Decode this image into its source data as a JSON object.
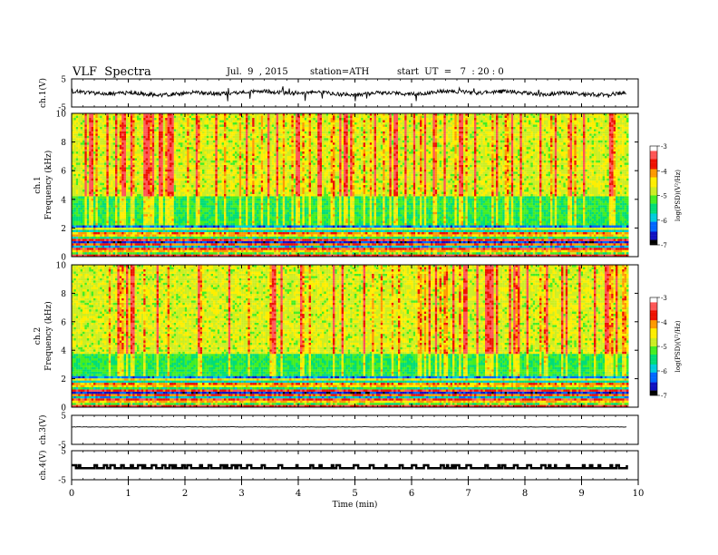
{
  "header": {
    "title": "VLF  Spectra",
    "date": "Jul.  9  , 2015",
    "station": "station=ATH",
    "start_ut": "start  UT  =   7  : 20 : 0"
  },
  "colors": {
    "scale": [
      "#000000",
      "#1010c0",
      "#0066ff",
      "#00ccdd",
      "#00dd77",
      "#44ee22",
      "#ccee22",
      "#ffee00",
      "#ff9900",
      "#ee1100",
      "#ff5555",
      "#ffffff"
    ],
    "trace": "#000000"
  },
  "chart_data": [
    {
      "type": "line",
      "ylabel": "ch.1(V)",
      "ylim": [
        -5,
        5
      ],
      "y_tick_labels": [
        "5",
        "-5"
      ],
      "note": "noisy waveform around 0 V, amplitude about 0.5 to 1.5 V"
    },
    {
      "type": "heatmap",
      "ylabel": "ch.1",
      "ylabel2": "Frequency (kHz)",
      "ylim": [
        0,
        10
      ],
      "y_ticks": [
        0,
        2,
        4,
        6,
        8,
        10
      ],
      "colorbar": {
        "label": "log(PSD)(V²/Hz)",
        "range": [
          -7,
          -3
        ],
        "ticks": [
          -3,
          -4,
          -5,
          -6,
          -7
        ]
      },
      "bands_khz": [
        {
          "from": 0,
          "to": 2.2,
          "level": "banded -7 to -3 (line interference)"
        },
        {
          "from": 2.2,
          "to": 4.2,
          "level": "-5.2"
        },
        {
          "from": 4.2,
          "to": 10,
          "level": "-4.5 with impulsive bursts near -3.5"
        }
      ]
    },
    {
      "type": "heatmap",
      "ylabel": "ch.2",
      "ylabel2": "Frequency (kHz)",
      "ylim": [
        0,
        10
      ],
      "y_ticks": [
        0,
        2,
        4,
        6,
        8,
        10
      ],
      "colorbar": {
        "label": "log(PSD)(V²/Hz)",
        "range": [
          -7,
          -3
        ],
        "ticks": [
          -3,
          -4,
          -5,
          -6,
          -7
        ]
      },
      "bands_khz": [
        {
          "from": 0,
          "to": 2.2,
          "level": "banded -7 to -3 (line interference)"
        },
        {
          "from": 2.2,
          "to": 3.8,
          "level": "-5.2"
        },
        {
          "from": 3.8,
          "to": 10,
          "level": "-4.5 with impulsive bursts near -3.5"
        }
      ]
    },
    {
      "type": "line",
      "ylabel": "ch.3(V)",
      "ylim": [
        -5,
        5
      ],
      "y_tick_labels": [
        "5",
        "-5"
      ],
      "note": "nearly flat trace at about 1 V"
    },
    {
      "type": "line",
      "ylabel": "ch.4(V)",
      "ylim": [
        -5,
        5
      ],
      "y_tick_labels": [
        "5",
        "-5"
      ],
      "note": "digital trace switching between about 0 V and -1 V"
    }
  ],
  "xaxis": {
    "label": "Time  (min)",
    "range": [
      0,
      10
    ],
    "ticks": [
      0,
      1,
      2,
      3,
      4,
      5,
      6,
      7,
      8,
      9,
      10
    ],
    "data_end": 9.8
  }
}
